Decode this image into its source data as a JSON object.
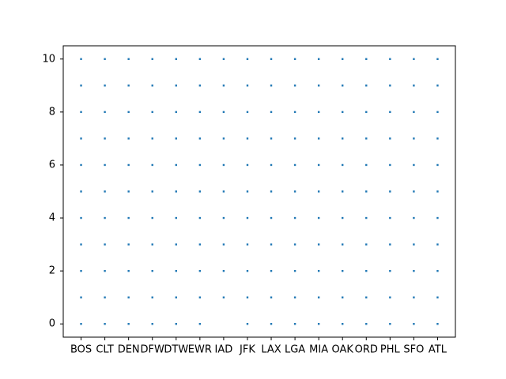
{
  "chart_data": {
    "type": "scatter",
    "categories": [
      "BOS",
      "CLT",
      "DEN",
      "DFW",
      "DTW",
      "EWR",
      "IAD",
      "JFK",
      "LAX",
      "LGA",
      "MIA",
      "OAK",
      "ORD",
      "PHL",
      "SFO",
      "ATL"
    ],
    "values": [
      [
        0,
        1,
        2,
        3,
        4,
        5,
        6,
        7,
        8,
        9,
        10
      ],
      [
        0,
        1,
        2,
        3,
        4,
        5,
        6,
        7,
        8,
        9,
        10
      ],
      [
        0,
        1,
        2,
        3,
        4,
        5,
        6,
        7,
        8,
        9,
        10
      ],
      [
        0,
        1,
        2,
        3,
        4,
        5,
        6,
        7,
        8,
        9,
        10
      ],
      [
        0,
        1,
        2,
        3,
        4,
        5,
        6,
        7,
        8,
        9,
        10
      ],
      [
        0,
        1,
        2,
        3,
        4,
        5,
        6,
        7,
        8,
        9,
        10
      ],
      [
        1,
        2,
        3,
        4,
        5,
        6,
        7,
        8,
        9,
        10
      ],
      [
        0,
        1,
        2,
        3,
        4,
        5,
        6,
        7,
        8,
        9,
        10
      ],
      [
        0,
        1,
        2,
        3,
        4,
        5,
        6,
        7,
        8,
        9,
        10
      ],
      [
        0,
        1,
        2,
        3,
        4,
        5,
        6,
        7,
        8,
        9,
        10
      ],
      [
        0,
        1,
        2,
        3,
        4,
        5,
        6,
        7,
        8,
        9,
        10
      ],
      [
        0,
        1,
        2,
        3,
        4,
        5,
        6,
        7,
        8,
        9,
        10
      ],
      [
        0,
        1,
        2,
        3,
        4,
        5,
        6,
        7,
        8,
        9,
        10
      ],
      [
        0,
        1,
        2,
        3,
        4,
        5,
        6,
        7,
        8,
        9,
        10
      ],
      [
        0,
        1,
        2,
        3,
        4,
        5,
        6,
        7,
        8,
        9,
        10
      ],
      [
        0,
        1,
        2,
        3,
        4,
        5,
        6,
        7,
        8,
        9,
        10
      ]
    ],
    "color": "#1f77b4",
    "ylim": [
      -0.5,
      10.5
    ],
    "yticks": [
      0,
      2,
      4,
      6,
      8,
      10
    ],
    "grid": false
  }
}
